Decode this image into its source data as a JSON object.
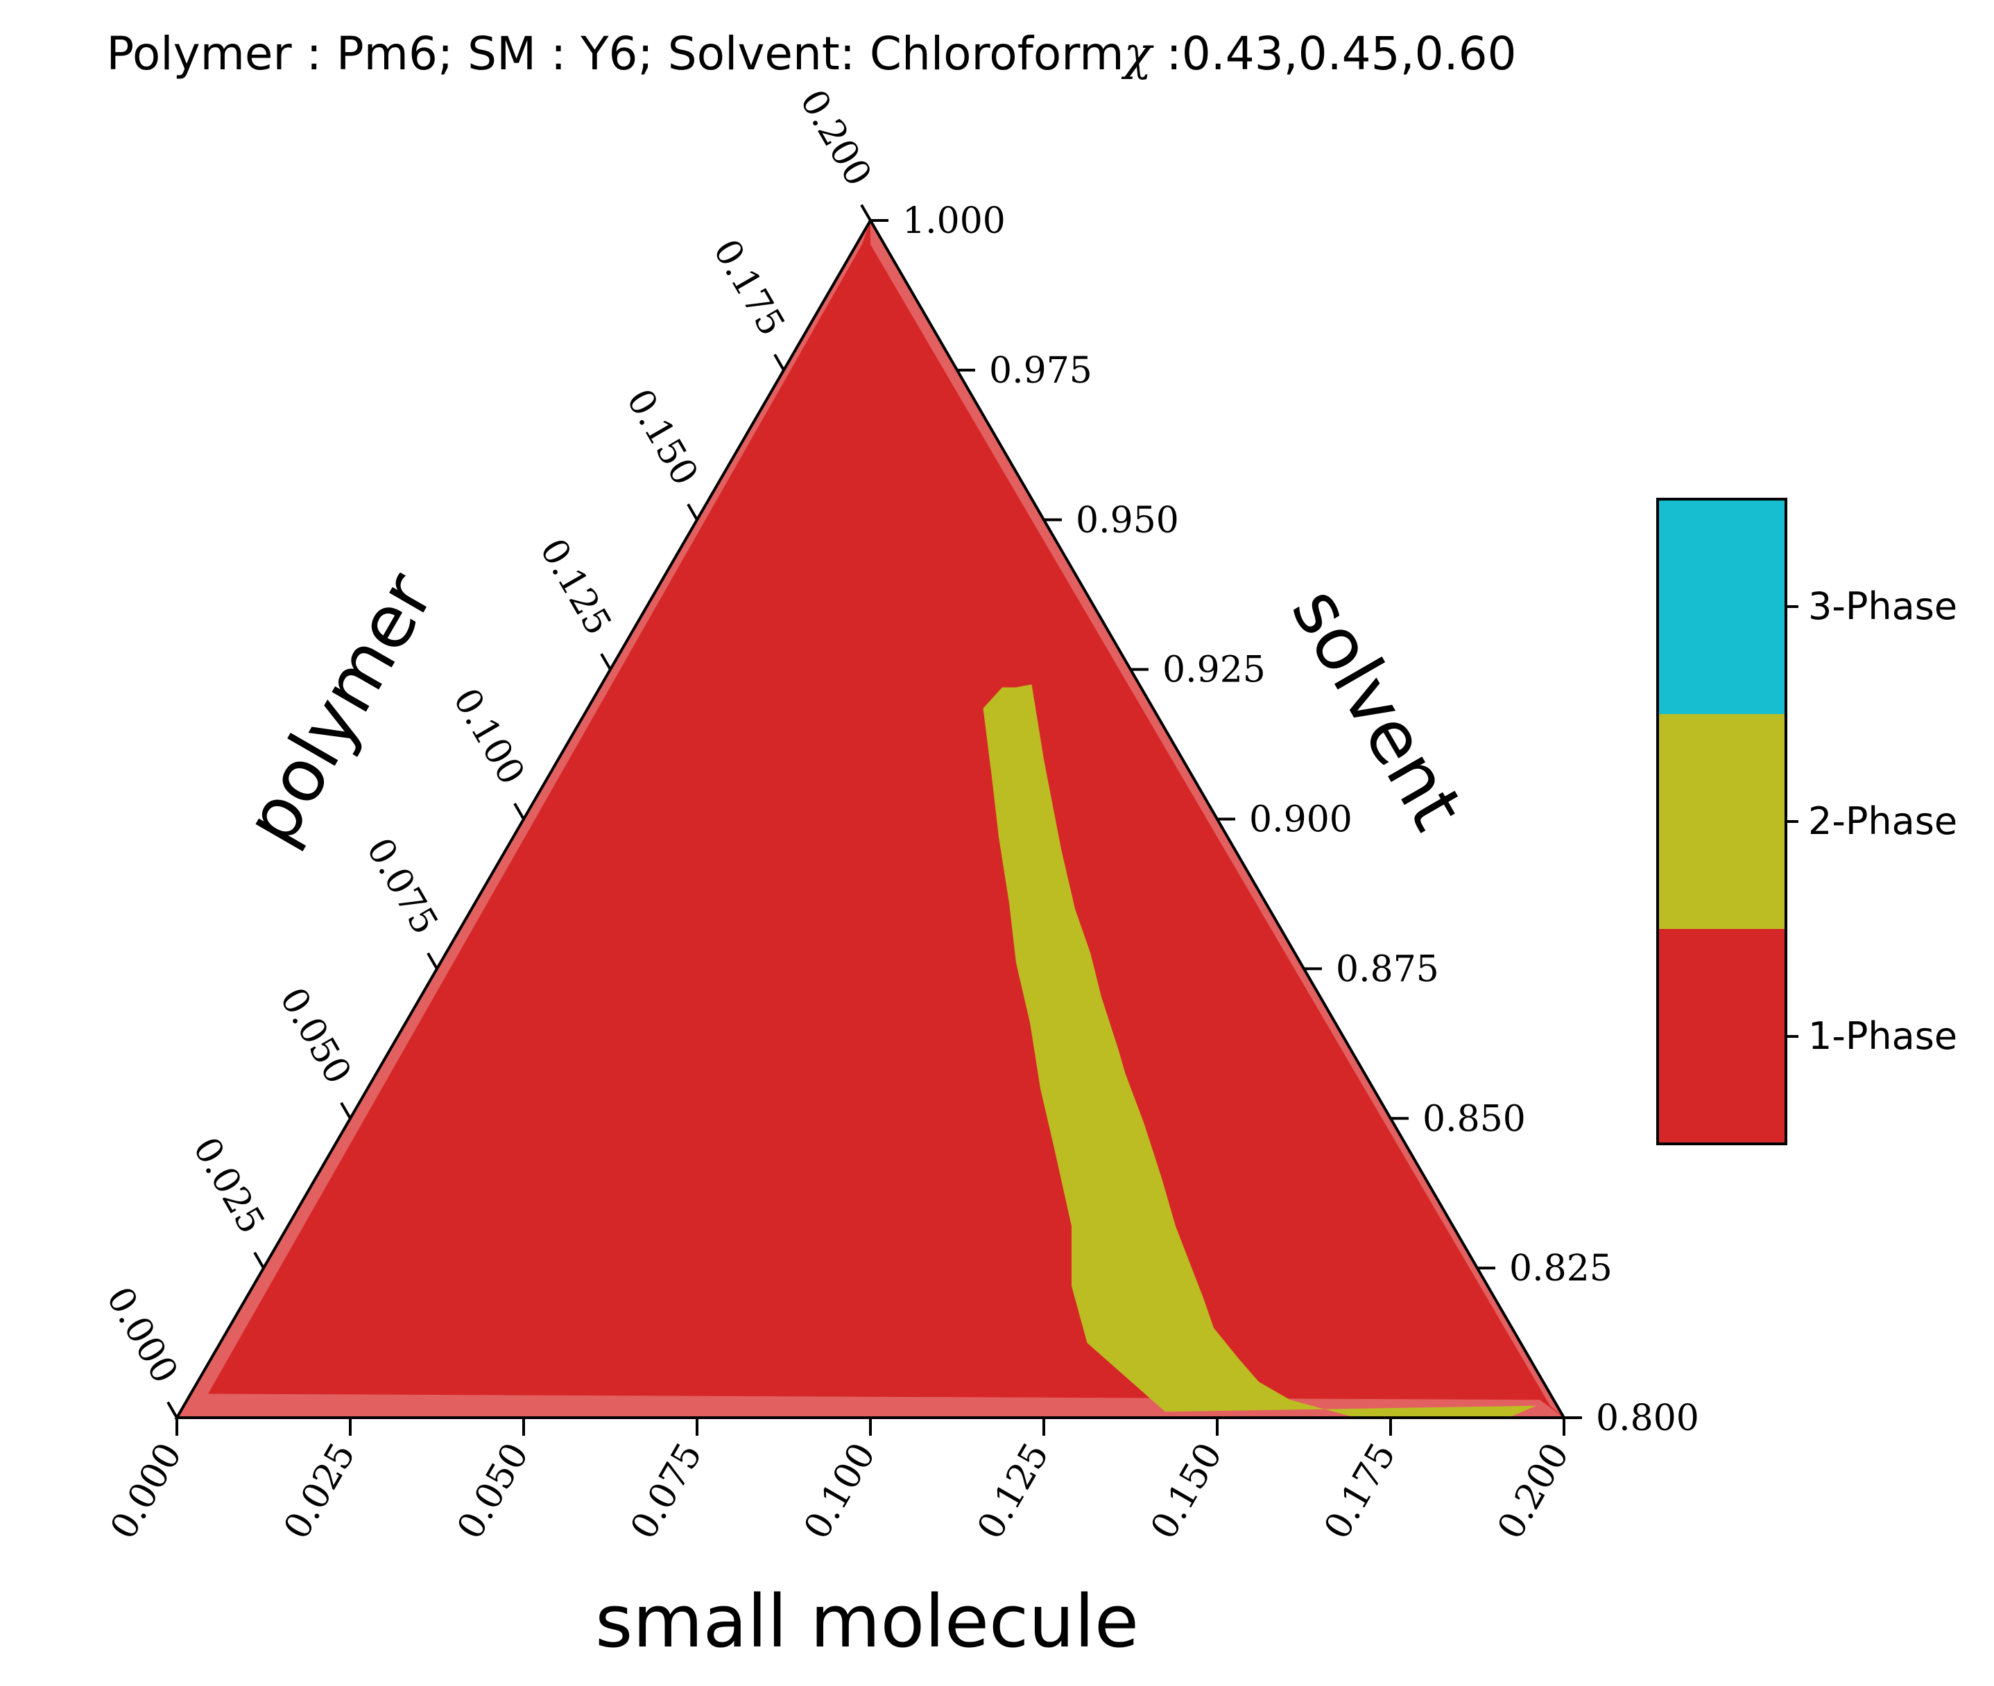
{
  "chart_data": {
    "type": "ternary-phase-diagram",
    "title": "Polymer : Pm6; SM : Y6; Solvent: Chloroform",
    "title_chi_symbol": "χ",
    "title_chi_values": " :0.43,0.45,0.60",
    "axes": {
      "bottom": {
        "label": "small molecule",
        "range": [
          0.0,
          0.2
        ],
        "ticks": [
          0.0,
          0.025,
          0.05,
          0.075,
          0.1,
          0.125,
          0.15,
          0.175,
          0.2
        ],
        "tick_labels": [
          "0.000",
          "0.025",
          "0.050",
          "0.075",
          "0.100",
          "0.125",
          "0.150",
          "0.175",
          "0.200"
        ]
      },
      "left": {
        "label": "polymer",
        "range": [
          0.0,
          0.2
        ],
        "ticks": [
          0.0,
          0.025,
          0.05,
          0.075,
          0.1,
          0.125,
          0.15,
          0.175,
          0.2
        ],
        "tick_labels": [
          "0.000",
          "0.025",
          "0.050",
          "0.075",
          "0.100",
          "0.125",
          "0.150",
          "0.175",
          "0.200"
        ]
      },
      "right": {
        "label": "solvent",
        "range": [
          0.8,
          1.0
        ],
        "ticks": [
          1.0,
          0.975,
          0.95,
          0.925,
          0.9,
          0.875,
          0.85,
          0.825,
          0.8
        ],
        "tick_labels": [
          "1.000",
          "0.975",
          "0.950",
          "0.925",
          "0.900",
          "0.875",
          "0.850",
          "0.825",
          "0.800"
        ]
      }
    },
    "regions": [
      {
        "name": "1-Phase",
        "color": "#d62728",
        "polygon_sm_polymer": [
          [
            0.0,
            0.0
          ],
          [
            0.2,
            0.0
          ],
          [
            0.0,
            0.2
          ]
        ]
      },
      {
        "name": "2-Phase",
        "color": "#bcbd22",
        "boundary_sm_polymer": [
          [
            0.195,
            0.002
          ],
          [
            0.142,
            0.001
          ],
          [
            0.125,
            0.0125
          ],
          [
            0.118,
            0.022
          ],
          [
            0.113,
            0.032
          ],
          [
            0.104,
            0.045
          ],
          [
            0.097,
            0.055
          ],
          [
            0.09,
            0.066
          ],
          [
            0.083,
            0.076
          ],
          [
            0.077,
            0.086
          ],
          [
            0.07,
            0.097
          ],
          [
            0.064,
            0.107
          ],
          [
            0.057,
            0.1185
          ],
          [
            0.058,
            0.122
          ],
          [
            0.06,
            0.122
          ],
          [
            0.062,
            0.1225
          ],
          [
            0.07,
            0.11
          ],
          [
            0.076,
            0.101
          ],
          [
            0.08,
            0.095
          ],
          [
            0.087,
            0.085
          ],
          [
            0.093,
            0.0775
          ],
          [
            0.098,
            0.0705
          ],
          [
            0.105,
            0.0615
          ],
          [
            0.108,
            0.0575
          ],
          [
            0.115,
            0.049
          ],
          [
            0.122,
            0.04
          ],
          [
            0.128,
            0.032
          ],
          [
            0.133,
            0.026
          ],
          [
            0.138,
            0.02
          ],
          [
            0.142,
            0.015
          ],
          [
            0.148,
            0.01
          ],
          [
            0.153,
            0.006
          ],
          [
            0.159,
            0.003
          ],
          [
            0.17,
            0.0
          ],
          [
            0.192,
            0.0
          ]
        ]
      }
    ],
    "legend": {
      "placement": "right",
      "entries": [
        {
          "label": "3-Phase",
          "color": "#17becf"
        },
        {
          "label": "2-Phase",
          "color": "#bcbd22"
        },
        {
          "label": "1-Phase",
          "color": "#d62728"
        }
      ]
    }
  }
}
